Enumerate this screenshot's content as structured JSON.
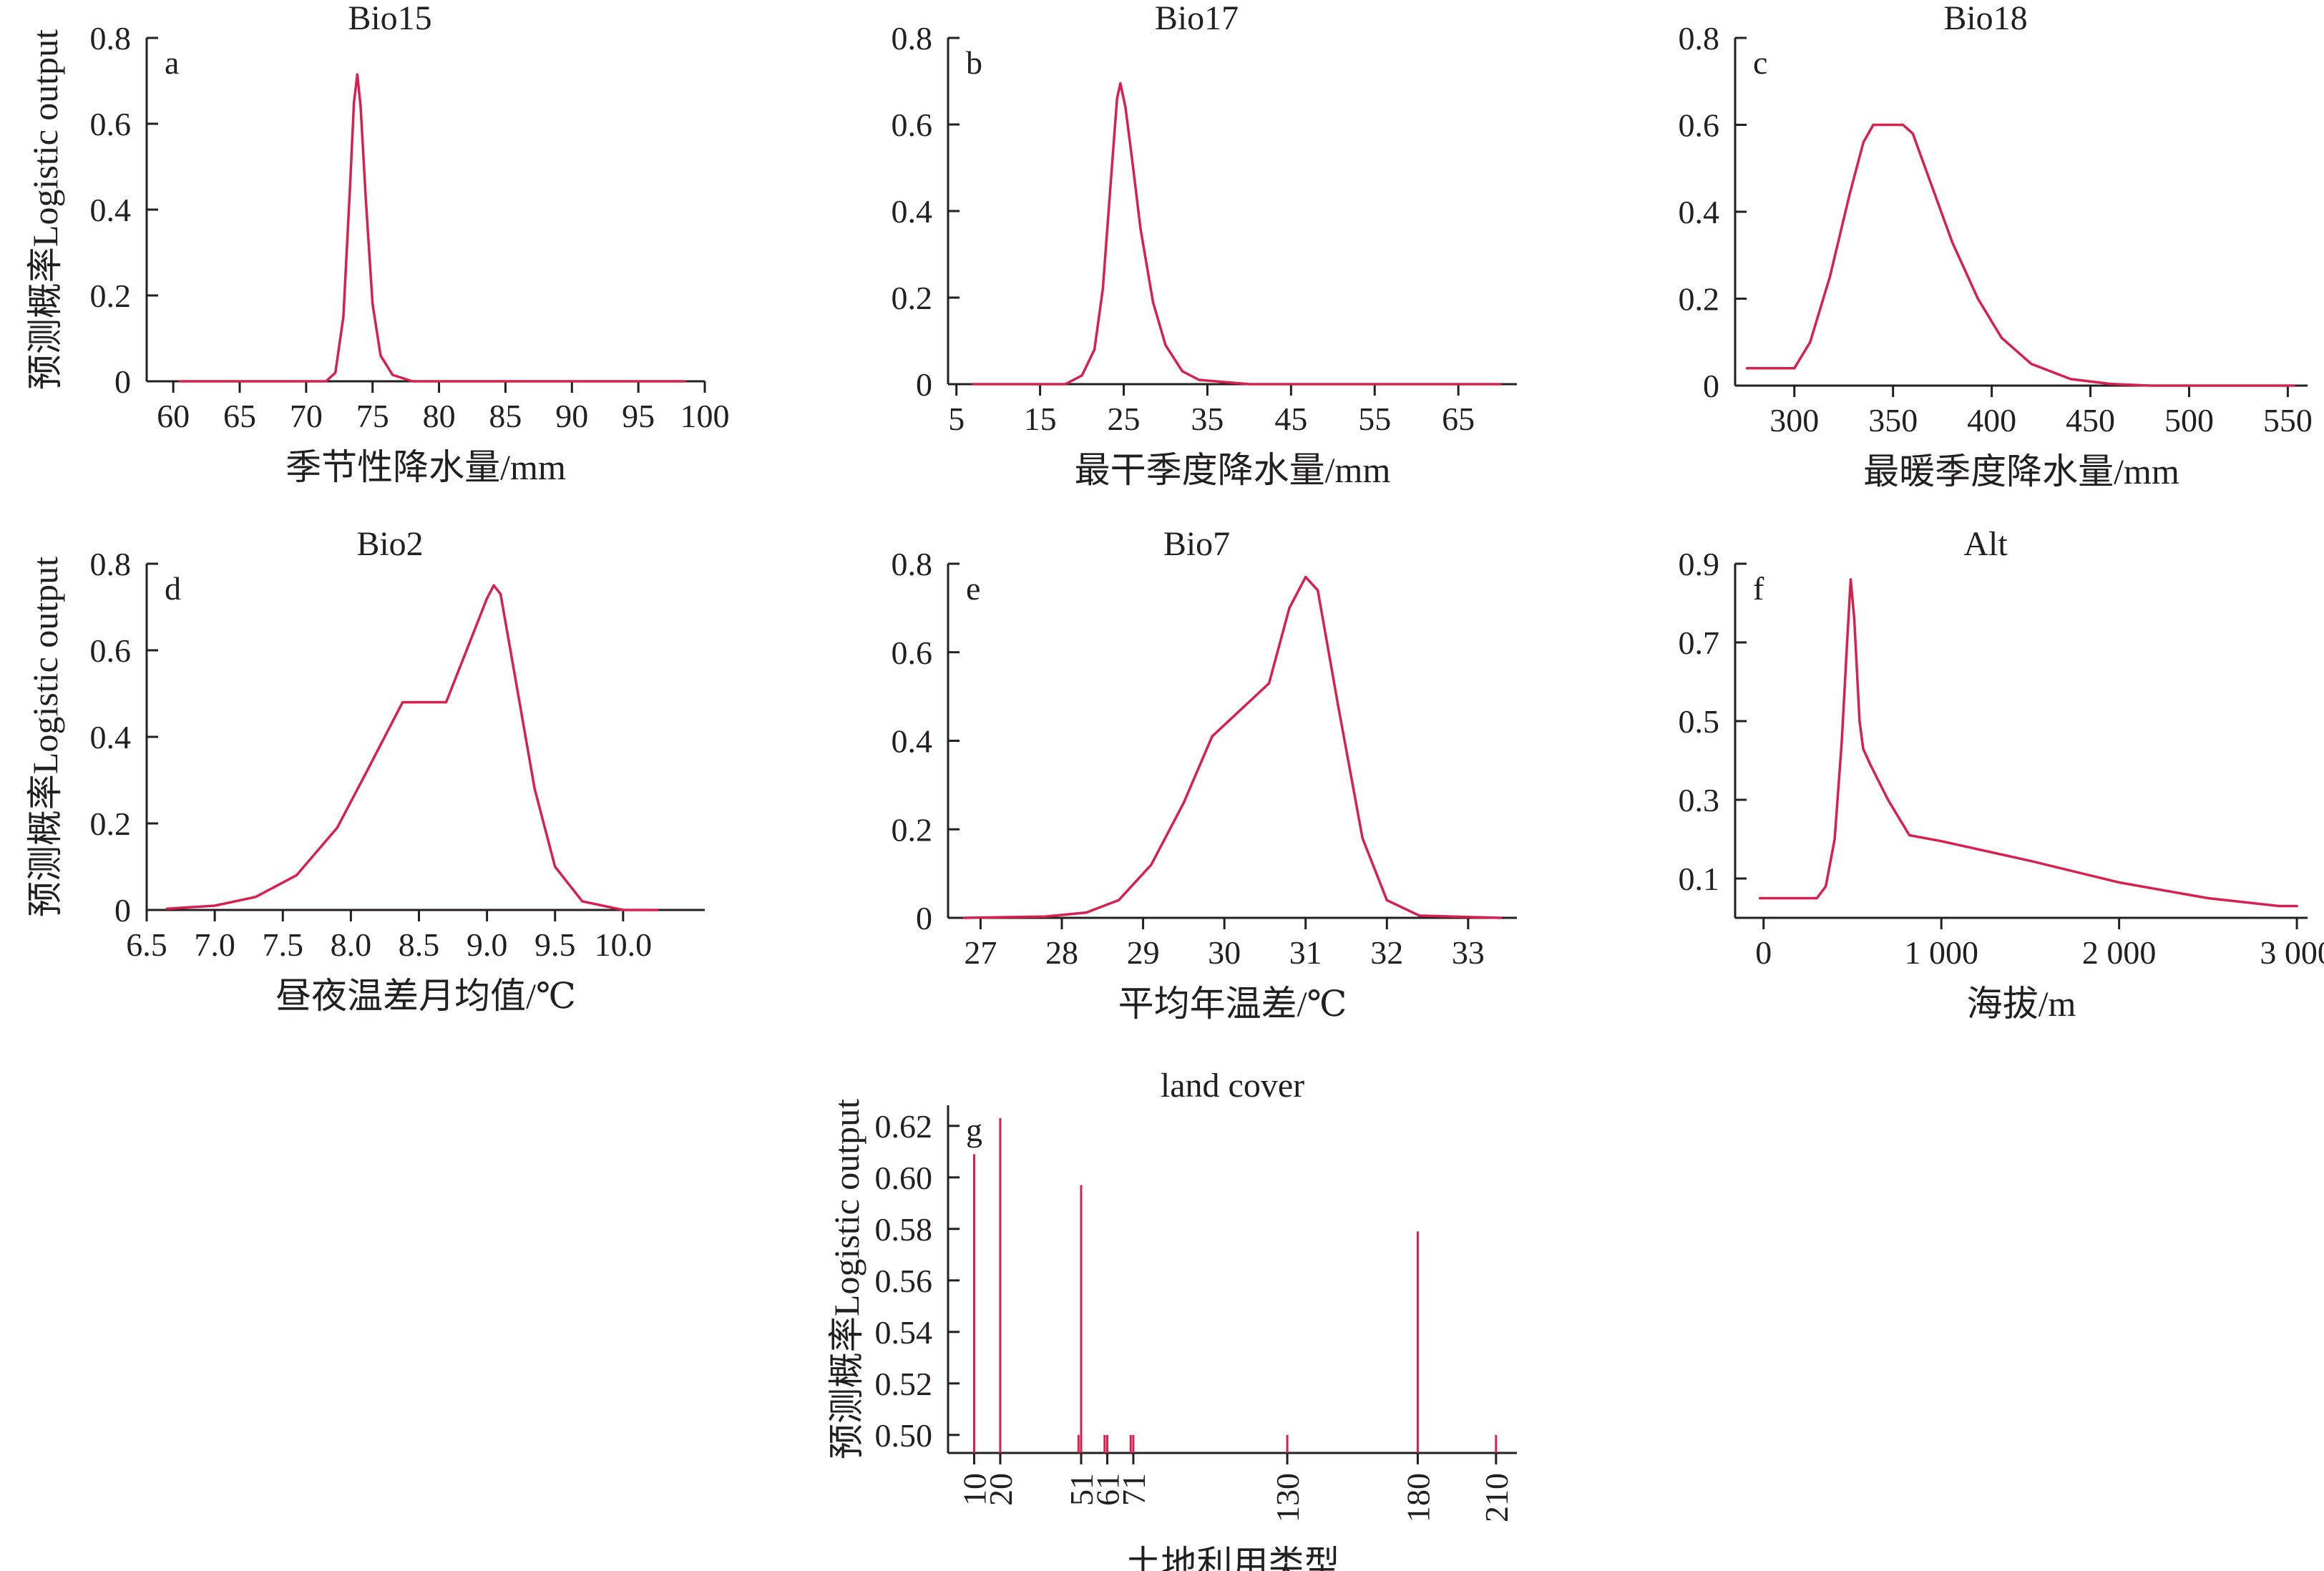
{
  "figure": {
    "y_axis_label": "预测概率Logistic output"
  },
  "colors": {
    "curve": "#d6204e",
    "axis": "#231f20",
    "background": "#ffffff"
  },
  "chart_data": [
    {
      "id": "a",
      "type": "line",
      "title": "Bio15",
      "letter": "a",
      "xlabel": "季节性降水量/mm",
      "ylabel": "预测概率Logistic output",
      "xlim": [
        58,
        100
      ],
      "ylim": [
        0,
        0.8
      ],
      "xticks": [
        60,
        65,
        70,
        75,
        80,
        85,
        90,
        95,
        100
      ],
      "xticklabels": [
        "60",
        "65",
        "70",
        "75",
        "80",
        "85",
        "90",
        "95",
        "100"
      ],
      "yticks": [
        0,
        0.2,
        0.4,
        0.6,
        0.8
      ],
      "yticklabels": [
        "0",
        "0.2",
        "0.4",
        "0.6",
        "0.8"
      ],
      "series": [
        {
          "x": [
            60.5,
            71.5,
            72.2,
            72.8,
            73.3,
            73.6,
            73.85,
            74.1,
            74.5,
            75.0,
            75.6,
            76.5,
            78.0,
            98.5
          ],
          "y": [
            0,
            0,
            0.02,
            0.15,
            0.45,
            0.65,
            0.715,
            0.64,
            0.42,
            0.18,
            0.06,
            0.015,
            0,
            0
          ]
        }
      ]
    },
    {
      "id": "b",
      "type": "line",
      "title": "Bio17",
      "letter": "b",
      "xlabel": "最干季度降水量/mm",
      "ylabel": "预测概率Logistic output",
      "xlim": [
        4,
        72
      ],
      "ylim": [
        0,
        0.8
      ],
      "xticks": [
        5,
        15,
        25,
        35,
        45,
        55,
        65
      ],
      "xticklabels": [
        "5",
        "15",
        "25",
        "35",
        "45",
        "55",
        "65"
      ],
      "yticks": [
        0,
        0.2,
        0.4,
        0.6,
        0.8
      ],
      "yticklabels": [
        "0",
        "0.2",
        "0.4",
        "0.6",
        "0.8"
      ],
      "series": [
        {
          "x": [
            7,
            18,
            20,
            21.5,
            22.5,
            23.5,
            24.2,
            24.6,
            25.2,
            26,
            27,
            28.5,
            30,
            32,
            34,
            40,
            70
          ],
          "y": [
            0,
            0,
            0.02,
            0.08,
            0.22,
            0.48,
            0.66,
            0.695,
            0.64,
            0.52,
            0.36,
            0.19,
            0.09,
            0.03,
            0.01,
            0,
            0
          ]
        }
      ]
    },
    {
      "id": "c",
      "type": "line",
      "title": "Bio18",
      "letter": "c",
      "xlabel": "最暖季度降水量/mm",
      "ylabel": "预测概率Logistic output",
      "xlim": [
        270,
        560
      ],
      "ylim": [
        0,
        0.8
      ],
      "xticks": [
        300,
        350,
        400,
        450,
        500,
        550
      ],
      "xticklabels": [
        "300",
        "350",
        "400",
        "450",
        "500",
        "550"
      ],
      "yticks": [
        0,
        0.2,
        0.4,
        0.6,
        0.8
      ],
      "yticklabels": [
        "0",
        "0.2",
        "0.4",
        "0.6",
        "0.8"
      ],
      "series": [
        {
          "x": [
            276,
            300,
            308,
            318,
            328,
            335,
            340,
            355,
            360,
            368,
            380,
            393,
            405,
            420,
            440,
            460,
            480,
            553
          ],
          "y": [
            0.04,
            0.04,
            0.1,
            0.25,
            0.44,
            0.56,
            0.6,
            0.6,
            0.58,
            0.48,
            0.33,
            0.2,
            0.11,
            0.05,
            0.015,
            0.004,
            0,
            0
          ]
        }
      ]
    },
    {
      "id": "d",
      "type": "line",
      "title": "Bio2",
      "letter": "d",
      "xlabel": "昼夜温差月均值/℃",
      "ylabel": "预测概率Logistic output",
      "xlim": [
        6.5,
        10.6
      ],
      "ylim": [
        0,
        0.8
      ],
      "xticks": [
        6.5,
        7.0,
        7.5,
        8.0,
        8.5,
        9.0,
        9.5,
        10.0
      ],
      "xticklabels": [
        "6.5",
        "7.0",
        "7.5",
        "8.0",
        "8.5",
        "9.0",
        "9.5",
        "10.0"
      ],
      "yticks": [
        0,
        0.2,
        0.4,
        0.6,
        0.8
      ],
      "yticklabels": [
        "0",
        "0.2",
        "0.4",
        "0.6",
        "0.8"
      ],
      "series": [
        {
          "x": [
            6.65,
            7.0,
            7.3,
            7.6,
            7.9,
            8.1,
            8.38,
            8.7,
            8.85,
            9.0,
            9.05,
            9.1,
            9.2,
            9.35,
            9.5,
            9.7,
            10.0,
            10.25
          ],
          "y": [
            0.003,
            0.01,
            0.03,
            0.08,
            0.19,
            0.31,
            0.48,
            0.48,
            0.6,
            0.72,
            0.75,
            0.73,
            0.55,
            0.28,
            0.1,
            0.02,
            0,
            0
          ]
        }
      ]
    },
    {
      "id": "e",
      "type": "line",
      "title": "Bio7",
      "letter": "e",
      "xlabel": "平均年温差/℃",
      "ylabel": "预测概率Logistic output",
      "xlim": [
        26.6,
        33.6
      ],
      "ylim": [
        0,
        0.8
      ],
      "xticks": [
        27,
        28,
        29,
        30,
        31,
        32,
        33
      ],
      "xticklabels": [
        "27",
        "28",
        "29",
        "30",
        "31",
        "32",
        "33"
      ],
      "yticks": [
        0,
        0.2,
        0.4,
        0.6,
        0.8
      ],
      "yticklabels": [
        "0",
        "0.2",
        "0.4",
        "0.6",
        "0.8"
      ],
      "series": [
        {
          "x": [
            26.8,
            27.8,
            28.3,
            28.7,
            29.1,
            29.5,
            29.85,
            30.2,
            30.55,
            30.8,
            31.0,
            31.15,
            31.4,
            31.7,
            32.0,
            32.4,
            33.4
          ],
          "y": [
            0,
            0.003,
            0.012,
            0.04,
            0.12,
            0.26,
            0.41,
            0.47,
            0.53,
            0.7,
            0.77,
            0.74,
            0.48,
            0.18,
            0.04,
            0.005,
            0
          ]
        }
      ]
    },
    {
      "id": "f",
      "type": "line",
      "title": "Alt",
      "letter": "f",
      "xlabel": "海拔/m",
      "ylabel": "预测概率Logistic output",
      "xlim": [
        -160,
        3060
      ],
      "ylim": [
        0,
        0.9
      ],
      "xticks": [
        0,
        1000,
        2000,
        3000
      ],
      "xticklabels": [
        "0",
        "1 000",
        "2 000",
        "3 000"
      ],
      "yticks": [
        0.1,
        0.3,
        0.5,
        0.7,
        0.9
      ],
      "yticklabels": [
        "0.1",
        "0.3",
        "0.5",
        "0.7",
        "0.9"
      ],
      "series": [
        {
          "x": [
            -20,
            300,
            350,
            400,
            440,
            470,
            490,
            510,
            540,
            560,
            600,
            700,
            820,
            1000,
            1500,
            2000,
            2500,
            2900,
            3000
          ],
          "y": [
            0.05,
            0.05,
            0.08,
            0.2,
            0.45,
            0.7,
            0.86,
            0.76,
            0.5,
            0.43,
            0.39,
            0.3,
            0.21,
            0.195,
            0.145,
            0.09,
            0.05,
            0.03,
            0.03
          ]
        }
      ]
    },
    {
      "id": "g",
      "type": "bar",
      "title": "land cover",
      "letter": "g",
      "xlabel": "土地利用类型",
      "ylabel": "预测概率Logistic output",
      "xlim": [
        0,
        218
      ],
      "ylim": [
        0.493,
        0.628
      ],
      "xticks": [
        10,
        20,
        51,
        61,
        71,
        130,
        180,
        210
      ],
      "xticklabels": [
        "10",
        "20",
        "51",
        "61",
        "71",
        "130",
        "180",
        "210"
      ],
      "yticks": [
        0.5,
        0.52,
        0.54,
        0.56,
        0.58,
        0.6,
        0.62
      ],
      "yticklabels": [
        "0.50",
        "0.52",
        "0.54",
        "0.56",
        "0.58",
        "0.60",
        "0.62"
      ],
      "categories": [
        10,
        20,
        50,
        51,
        60,
        61,
        70,
        71,
        130,
        180,
        210
      ],
      "values": [
        0.609,
        0.623,
        0.5,
        0.597,
        0.5,
        0.5,
        0.5,
        0.5,
        0.5,
        0.579,
        0.5
      ]
    }
  ]
}
